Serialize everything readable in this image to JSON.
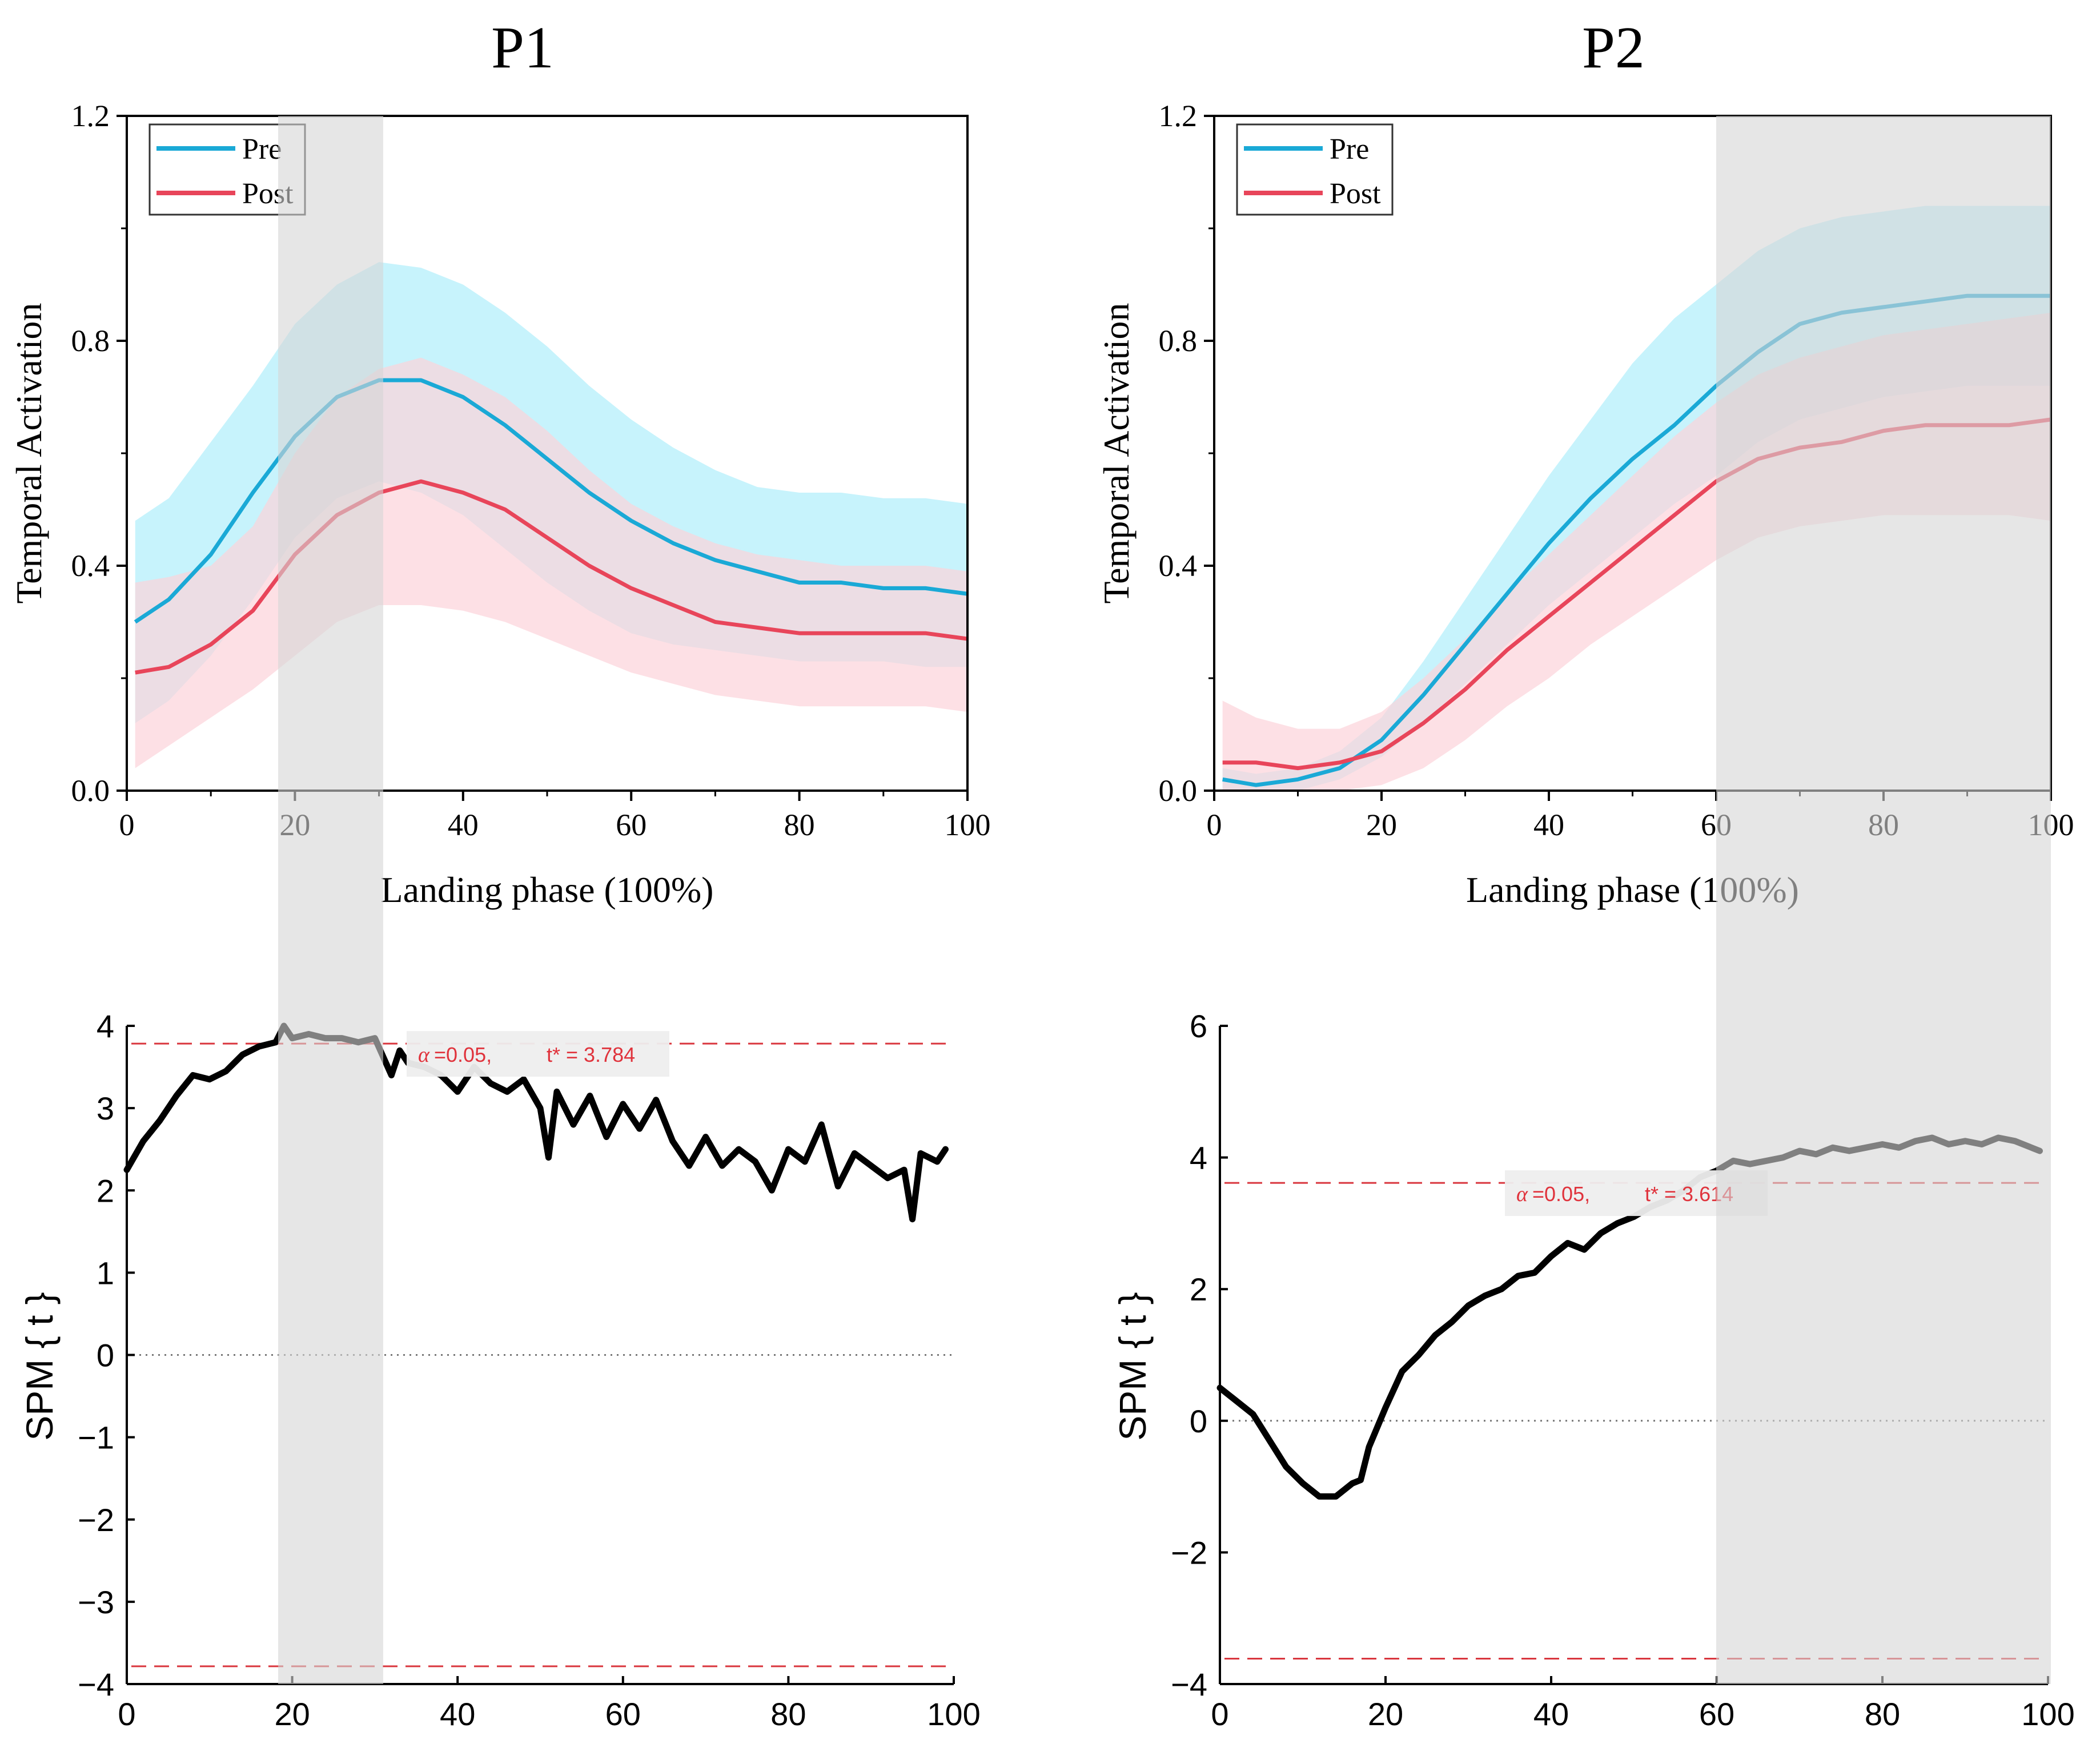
{
  "panels": [
    {
      "title": "P1"
    },
    {
      "title": "P2"
    }
  ],
  "chart_data": [
    {
      "id": "p1_top",
      "type": "line",
      "xlabel": "Landing phase (100%)",
      "ylabel": "Temporal Activation",
      "xlim": [
        0,
        100
      ],
      "ylim": [
        0,
        1.2
      ],
      "xticks": [
        "0",
        "20",
        "40",
        "60",
        "80",
        "100"
      ],
      "yticks": [
        "0.0",
        "0.4",
        "0.8",
        "1.2"
      ],
      "legend": {
        "position": "top-left",
        "entries": [
          "Pre",
          "Post"
        ]
      },
      "highlight": [
        18,
        30.5
      ],
      "x": [
        1,
        5,
        10,
        15,
        20,
        25,
        30,
        35,
        40,
        45,
        50,
        55,
        60,
        65,
        70,
        75,
        80,
        85,
        90,
        95,
        100
      ],
      "series": [
        {
          "name": "Pre",
          "color": "#1aa9d6",
          "values": [
            0.3,
            0.34,
            0.42,
            0.53,
            0.63,
            0.7,
            0.73,
            0.73,
            0.7,
            0.65,
            0.59,
            0.53,
            0.48,
            0.44,
            0.41,
            0.39,
            0.37,
            0.37,
            0.36,
            0.36,
            0.35
          ],
          "lower": [
            0.12,
            0.16,
            0.24,
            0.34,
            0.45,
            0.52,
            0.55,
            0.53,
            0.49,
            0.43,
            0.37,
            0.32,
            0.28,
            0.26,
            0.25,
            0.24,
            0.23,
            0.23,
            0.23,
            0.22,
            0.22
          ],
          "upper": [
            0.48,
            0.52,
            0.62,
            0.72,
            0.83,
            0.9,
            0.94,
            0.93,
            0.9,
            0.85,
            0.79,
            0.72,
            0.66,
            0.61,
            0.57,
            0.54,
            0.53,
            0.53,
            0.52,
            0.52,
            0.51
          ]
        },
        {
          "name": "Post",
          "color": "#e8455a",
          "values": [
            0.21,
            0.22,
            0.26,
            0.32,
            0.42,
            0.49,
            0.53,
            0.55,
            0.53,
            0.5,
            0.45,
            0.4,
            0.36,
            0.33,
            0.3,
            0.29,
            0.28,
            0.28,
            0.28,
            0.28,
            0.27
          ],
          "lower": [
            0.04,
            0.08,
            0.13,
            0.18,
            0.24,
            0.3,
            0.33,
            0.33,
            0.32,
            0.3,
            0.27,
            0.24,
            0.21,
            0.19,
            0.17,
            0.16,
            0.15,
            0.15,
            0.15,
            0.15,
            0.14
          ],
          "upper": [
            0.37,
            0.38,
            0.4,
            0.47,
            0.6,
            0.7,
            0.75,
            0.77,
            0.74,
            0.7,
            0.64,
            0.57,
            0.51,
            0.47,
            0.44,
            0.42,
            0.41,
            0.4,
            0.4,
            0.4,
            0.39
          ]
        }
      ]
    },
    {
      "id": "p1_spm",
      "type": "line",
      "xlabel": "",
      "ylabel": "SPM { t }",
      "xlim": [
        0,
        100
      ],
      "ylim": [
        -4,
        4
      ],
      "xticks": [
        "0",
        "20",
        "40",
        "60",
        "80",
        "100"
      ],
      "yticks": [
        "−4",
        "−3",
        "−2",
        "−1",
        "0",
        "1",
        "2",
        "3",
        "4"
      ],
      "ytick_values": [
        -4,
        -3,
        -2,
        -1,
        0,
        1,
        2,
        3,
        4
      ],
      "threshold": 3.784,
      "annotation": {
        "alpha": "α",
        "alpha_text": " =0.05,",
        "tstar_text": "t* = 3.784"
      },
      "highlight": [
        18,
        30.5
      ],
      "x": [
        0,
        2,
        4,
        6,
        8,
        10,
        12,
        14,
        16,
        18,
        19,
        20,
        22,
        24,
        26,
        28,
        30,
        32,
        33,
        34,
        36,
        38,
        40,
        42,
        44,
        46,
        48,
        50,
        51,
        52,
        54,
        56,
        58,
        60,
        62,
        64,
        66,
        68,
        70,
        72,
        74,
        76,
        78,
        80,
        82,
        84,
        86,
        88,
        90,
        92,
        94,
        95,
        96,
        98,
        99
      ],
      "series": [
        {
          "name": "SPM{t}",
          "color": "#000000",
          "values": [
            2.25,
            2.6,
            2.85,
            3.15,
            3.4,
            3.35,
            3.45,
            3.65,
            3.75,
            3.8,
            4.0,
            3.85,
            3.9,
            3.85,
            3.85,
            3.8,
            3.85,
            3.4,
            3.7,
            3.55,
            3.5,
            3.4,
            3.2,
            3.5,
            3.3,
            3.2,
            3.35,
            3.0,
            2.4,
            3.2,
            2.8,
            3.15,
            2.65,
            3.05,
            2.75,
            3.1,
            2.6,
            2.3,
            2.65,
            2.3,
            2.5,
            2.35,
            2.0,
            2.5,
            2.35,
            2.8,
            2.05,
            2.45,
            2.3,
            2.15,
            2.25,
            1.65,
            2.45,
            2.35,
            2.5
          ]
        }
      ]
    },
    {
      "id": "p2_top",
      "type": "line",
      "xlabel": "Landing phase (100%)",
      "ylabel": "Temporal Activation",
      "xlim": [
        0,
        100
      ],
      "ylim": [
        0,
        1.2
      ],
      "xticks": [
        "0",
        "20",
        "40",
        "60",
        "80",
        "100"
      ],
      "yticks": [
        "0.0",
        "0.4",
        "0.8",
        "1.2"
      ],
      "legend": {
        "position": "top-left",
        "entries": [
          "Pre",
          "Post"
        ]
      },
      "highlight": [
        60,
        100
      ],
      "x": [
        1,
        5,
        10,
        15,
        20,
        25,
        30,
        35,
        40,
        45,
        50,
        55,
        60,
        65,
        70,
        75,
        80,
        85,
        90,
        95,
        100
      ],
      "series": [
        {
          "name": "Pre",
          "color": "#1aa9d6",
          "values": [
            0.02,
            0.01,
            0.02,
            0.04,
            0.09,
            0.17,
            0.26,
            0.35,
            0.44,
            0.52,
            0.59,
            0.65,
            0.72,
            0.78,
            0.83,
            0.85,
            0.86,
            0.87,
            0.88,
            0.88,
            0.88
          ],
          "lower": [
            0.0,
            0.0,
            0.0,
            0.02,
            0.06,
            0.12,
            0.19,
            0.26,
            0.33,
            0.39,
            0.45,
            0.51,
            0.56,
            0.62,
            0.66,
            0.68,
            0.7,
            0.71,
            0.72,
            0.72,
            0.72
          ],
          "upper": [
            0.04,
            0.03,
            0.04,
            0.07,
            0.13,
            0.23,
            0.34,
            0.45,
            0.56,
            0.66,
            0.76,
            0.84,
            0.9,
            0.96,
            1.0,
            1.02,
            1.03,
            1.04,
            1.04,
            1.04,
            1.04
          ]
        },
        {
          "name": "Post",
          "color": "#e8455a",
          "values": [
            0.05,
            0.05,
            0.04,
            0.05,
            0.07,
            0.12,
            0.18,
            0.25,
            0.31,
            0.37,
            0.43,
            0.49,
            0.55,
            0.59,
            0.61,
            0.62,
            0.64,
            0.65,
            0.65,
            0.65,
            0.66
          ],
          "lower": [
            0.0,
            0.0,
            0.0,
            0.0,
            0.01,
            0.04,
            0.09,
            0.15,
            0.2,
            0.26,
            0.31,
            0.36,
            0.41,
            0.45,
            0.47,
            0.48,
            0.49,
            0.49,
            0.49,
            0.49,
            0.48
          ],
          "upper": [
            0.16,
            0.13,
            0.11,
            0.11,
            0.14,
            0.2,
            0.27,
            0.35,
            0.42,
            0.49,
            0.56,
            0.63,
            0.69,
            0.74,
            0.77,
            0.79,
            0.81,
            0.82,
            0.83,
            0.84,
            0.85
          ]
        }
      ]
    },
    {
      "id": "p2_spm",
      "type": "line",
      "xlabel": "",
      "ylabel": "SPM { t }",
      "xlim": [
        0,
        100
      ],
      "ylim": [
        -4,
        6
      ],
      "xticks": [
        "0",
        "20",
        "40",
        "60",
        "80",
        "100"
      ],
      "yticks": [
        "−4",
        "−2",
        "0",
        "2",
        "4",
        "6"
      ],
      "ytick_values": [
        -4,
        -2,
        0,
        2,
        4,
        6
      ],
      "threshold": 3.614,
      "annotation": {
        "alpha": "α",
        "alpha_text": " =0.05,",
        "tstar_text": "t* = 3.614"
      },
      "highlight": [
        60,
        100
      ],
      "x": [
        0,
        2,
        4,
        6,
        8,
        10,
        12,
        14,
        16,
        17,
        18,
        20,
        22,
        24,
        26,
        28,
        30,
        32,
        34,
        36,
        38,
        40,
        42,
        44,
        46,
        48,
        50,
        52,
        54,
        56,
        58,
        60,
        62,
        64,
        66,
        68,
        70,
        72,
        74,
        76,
        78,
        80,
        82,
        84,
        86,
        88,
        90,
        92,
        94,
        96,
        98,
        99
      ],
      "series": [
        {
          "name": "SPM{t}",
          "color": "#000000",
          "values": [
            0.5,
            0.3,
            0.1,
            -0.3,
            -0.7,
            -0.95,
            -1.15,
            -1.15,
            -0.95,
            -0.9,
            -0.4,
            0.2,
            0.75,
            1.0,
            1.3,
            1.5,
            1.75,
            1.9,
            2.0,
            2.2,
            2.25,
            2.5,
            2.7,
            2.6,
            2.85,
            3.0,
            3.1,
            3.25,
            3.35,
            3.5,
            3.7,
            3.8,
            3.95,
            3.9,
            3.95,
            4.0,
            4.1,
            4.05,
            4.15,
            4.1,
            4.15,
            4.2,
            4.15,
            4.25,
            4.3,
            4.2,
            4.25,
            4.2,
            4.3,
            4.25,
            4.15,
            4.1
          ]
        }
      ]
    }
  ]
}
